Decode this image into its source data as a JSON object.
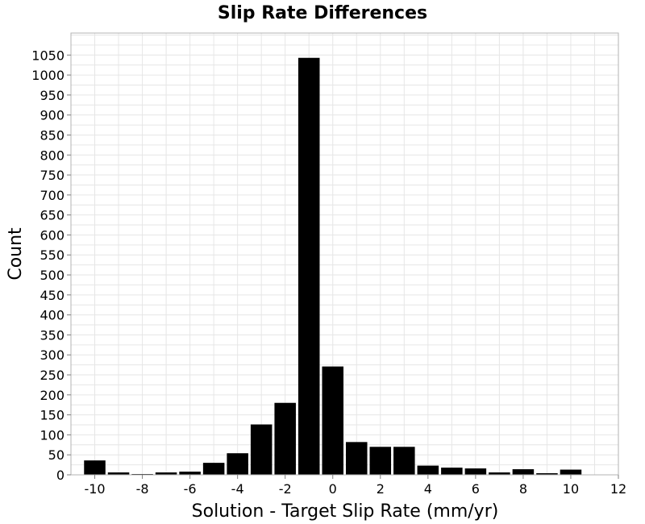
{
  "chart_data": {
    "type": "bar",
    "title": "Slip Rate Differences",
    "xlabel": "Solution - Target Slip Rate (mm/yr)",
    "ylabel": "Count",
    "x": [
      -10,
      -9,
      -8,
      -7,
      -6,
      -5,
      -4,
      -3,
      -2,
      -1,
      0,
      1,
      2,
      3,
      4,
      5,
      6,
      7,
      8,
      9,
      10
    ],
    "values": [
      36,
      6,
      2,
      6,
      8,
      30,
      54,
      126,
      180,
      1043,
      271,
      82,
      70,
      70,
      23,
      18,
      16,
      6,
      14,
      4,
      13
    ],
    "bin_width": 1,
    "xlim": [
      -11,
      12
    ],
    "ylim": [
      0,
      1105
    ],
    "xticks": [
      -10,
      -8,
      -6,
      -4,
      -2,
      0,
      2,
      4,
      6,
      8,
      10,
      12
    ],
    "yticks": [
      0,
      50,
      100,
      150,
      200,
      250,
      300,
      350,
      400,
      450,
      500,
      550,
      600,
      650,
      700,
      750,
      800,
      850,
      900,
      950,
      1000,
      1050
    ],
    "grid": true,
    "legend": "none",
    "bar_color": "#000000"
  }
}
